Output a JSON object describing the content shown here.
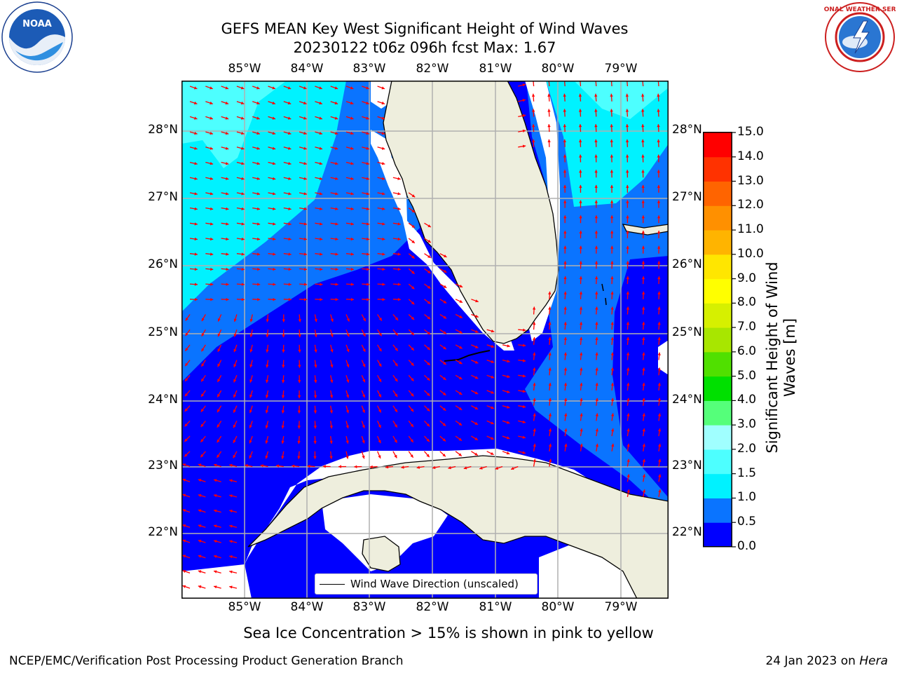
{
  "title_line1": "GEFS MEAN Key West Significant Height of Wind Waves",
  "title_line2": "20230122 t06z 096h fcst   Max: 1.67",
  "lon_labels": [
    "85°W",
    "84°W",
    "83°W",
    "82°W",
    "81°W",
    "80°W",
    "79°W"
  ],
  "lat_labels": [
    "28°N",
    "27°N",
    "26°N",
    "25°N",
    "24°N",
    "23°N",
    "22°N"
  ],
  "legend_label": "Wind Wave Direction (unscaled)",
  "colorbar": {
    "label_line1": "Significant Height of Wind",
    "label_line2": "Waves [m]",
    "ticks": [
      "0.0",
      "0.5",
      "1.0",
      "1.5",
      "2.0",
      "3.0",
      "4.0",
      "5.0",
      "6.0",
      "7.0",
      "8.0",
      "9.0",
      "10.0",
      "11.0",
      "12.0",
      "13.0",
      "14.0",
      "15.0"
    ],
    "colors": [
      "#0000ff",
      "#0a74ff",
      "#00f2ff",
      "#4dffff",
      "#a0ffff",
      "#55ff7a",
      "#00e000",
      "#50e000",
      "#a8e600",
      "#d6f000",
      "#ffff00",
      "#ffe600",
      "#ffb400",
      "#ff9000",
      "#ff6400",
      "#ff3200",
      "#ff0000"
    ]
  },
  "subtitle": "Sea Ice Concentration > 15% is shown in pink to yellow",
  "footer_left": "NCEP/EMC/Verification Post Processing Product Generation Branch",
  "footer_right_date": "24 Jan 2023 on ",
  "footer_right_host": "Hera",
  "logos": {
    "left": "noaa-logo",
    "right": "national-weather-service-logo"
  },
  "field_colors": {
    "land": "#eeeedd",
    "band_0_0p5": "#0000ff",
    "band_0p5_1": "#0a74ff",
    "band_1_1p5": "#00f2ff",
    "band_1p5_2": "#4dffff",
    "arrows": "#ff0000"
  }
}
